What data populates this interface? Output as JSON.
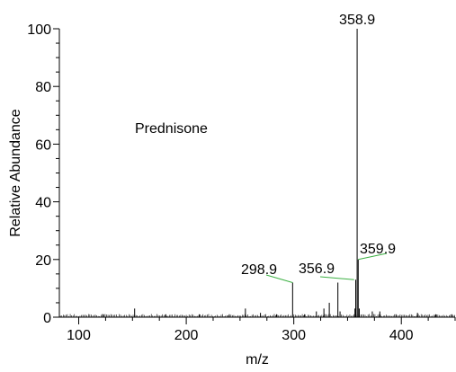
{
  "chart_data": {
    "type": "bar",
    "title": "",
    "xlabel": "m/z",
    "ylabel": "Relative Abundance",
    "xlim": [
      82,
      450
    ],
    "ylim": [
      0,
      100
    ],
    "x_ticks": [
      100,
      200,
      300,
      400
    ],
    "y_ticks": [
      0,
      20,
      40,
      60,
      80,
      100
    ],
    "annotation": "Prednisone",
    "series": [
      {
        "values": [
          {
            "x": 358.9,
            "y": 100
          },
          {
            "x": 359.9,
            "y": 20
          },
          {
            "x": 357.6,
            "y": 13
          },
          {
            "x": 356.9,
            "y": 3
          },
          {
            "x": 341.0,
            "y": 12
          },
          {
            "x": 333.0,
            "y": 5
          },
          {
            "x": 298.9,
            "y": 12
          },
          {
            "x": 360.9,
            "y": 3
          },
          {
            "x": 328.0,
            "y": 3
          },
          {
            "x": 321.0,
            "y": 2
          },
          {
            "x": 255.0,
            "y": 3
          },
          {
            "x": 152.0,
            "y": 3
          },
          {
            "x": 343.0,
            "y": 2
          },
          {
            "x": 373.0,
            "y": 2
          },
          {
            "x": 269.0,
            "y": 1.5
          },
          {
            "x": 380.0,
            "y": 2
          },
          {
            "x": 415.0,
            "y": 1.5
          },
          {
            "x": 123.0,
            "y": 1
          },
          {
            "x": 181.0,
            "y": 1
          },
          {
            "x": 212.0,
            "y": 1
          },
          {
            "x": 240.0,
            "y": 1
          },
          {
            "x": 284.0,
            "y": 1
          },
          {
            "x": 310.0,
            "y": 1
          },
          {
            "x": 395.0,
            "y": 1
          },
          {
            "x": 432.0,
            "y": 1
          },
          {
            "x": 447.0,
            "y": 1
          }
        ]
      }
    ],
    "peak_labels": [
      {
        "text": "358.9",
        "x": 358.9,
        "y": 100
      },
      {
        "text": "359.9",
        "x": 359.9,
        "y": 20
      },
      {
        "text": "356.9",
        "x": 356.9,
        "y": 13
      },
      {
        "text": "298.9",
        "x": 298.9,
        "y": 12
      }
    ]
  }
}
